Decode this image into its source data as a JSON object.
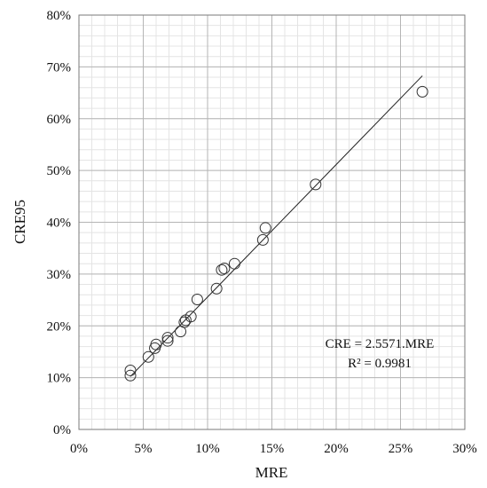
{
  "chart_data": {
    "type": "scatter",
    "xlabel": "MRE",
    "ylabel": "CRE95",
    "xlim": [
      0,
      0.3
    ],
    "ylim": [
      0,
      0.8
    ],
    "x_ticks": [
      0,
      0.05,
      0.1,
      0.15,
      0.2,
      0.25,
      0.3
    ],
    "x_tick_labels": [
      "0%",
      "5%",
      "10%",
      "15%",
      "20%",
      "25%",
      "30%"
    ],
    "y_ticks": [
      0,
      0.1,
      0.2,
      0.3,
      0.4,
      0.5,
      0.6,
      0.7,
      0.8
    ],
    "y_tick_labels": [
      "0%",
      "10%",
      "20%",
      "30%",
      "40%",
      "50%",
      "60%",
      "70%",
      "80%"
    ],
    "x_minor_step": 0.01,
    "y_minor_step": 0.02,
    "grid": true,
    "series": [
      {
        "marker": "open-circle",
        "points": [
          {
            "x": 0.04,
            "y": 0.104
          },
          {
            "x": 0.04,
            "y": 0.114
          },
          {
            "x": 0.054,
            "y": 0.14
          },
          {
            "x": 0.059,
            "y": 0.157
          },
          {
            "x": 0.06,
            "y": 0.164
          },
          {
            "x": 0.069,
            "y": 0.171
          },
          {
            "x": 0.069,
            "y": 0.177
          },
          {
            "x": 0.079,
            "y": 0.189
          },
          {
            "x": 0.082,
            "y": 0.207
          },
          {
            "x": 0.083,
            "y": 0.211
          },
          {
            "x": 0.087,
            "y": 0.218
          },
          {
            "x": 0.092,
            "y": 0.251
          },
          {
            "x": 0.107,
            "y": 0.272
          },
          {
            "x": 0.111,
            "y": 0.308
          },
          {
            "x": 0.113,
            "y": 0.311
          },
          {
            "x": 0.121,
            "y": 0.32
          },
          {
            "x": 0.143,
            "y": 0.366
          },
          {
            "x": 0.145,
            "y": 0.389
          },
          {
            "x": 0.184,
            "y": 0.473
          },
          {
            "x": 0.267,
            "y": 0.652
          }
        ]
      }
    ],
    "trendline": {
      "slope": 2.5571,
      "intercept": 0,
      "x_start": 0.04,
      "x_end": 0.267
    },
    "annotations": [
      "CRE = 2.5571.MRE",
      "R² = 0.9981"
    ]
  }
}
